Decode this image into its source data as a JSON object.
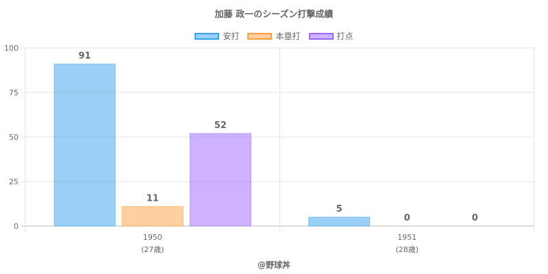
{
  "chart_data": {
    "type": "bar",
    "title": "加藤 政一のシーズン打撃成績",
    "categories": [
      "1950",
      "1951"
    ],
    "category_sublabels": [
      "(27歳)",
      "(28歳)"
    ],
    "series": [
      {
        "name": "安打",
        "values": [
          91,
          5
        ],
        "color": "#36a2eb"
      },
      {
        "name": "本塁打",
        "values": [
          11,
          0
        ],
        "color": "#ff9f40"
      },
      {
        "name": "打点",
        "values": [
          52,
          0
        ],
        "color": "#9966ff"
      }
    ],
    "ylim": [
      0,
      100
    ],
    "yticks": [
      0,
      25,
      50,
      75,
      100
    ],
    "grid": true,
    "legend_position": "top"
  },
  "footer": "@野球丼"
}
